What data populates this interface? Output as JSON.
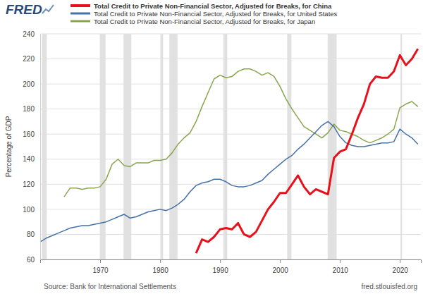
{
  "chart_data": {
    "type": "line",
    "logo": "FRED",
    "y_label": "Percentage of GDP",
    "source": "Source: Bank for International Settlements",
    "site": "fred.stlouisfed.org",
    "x": [
      1960,
      1961,
      1962,
      1963,
      1964,
      1965,
      1966,
      1967,
      1968,
      1969,
      1970,
      1971,
      1972,
      1973,
      1974,
      1975,
      1976,
      1977,
      1978,
      1979,
      1980,
      1981,
      1982,
      1983,
      1984,
      1985,
      1986,
      1987,
      1988,
      1989,
      1990,
      1991,
      1992,
      1993,
      1994,
      1995,
      1996,
      1997,
      1998,
      1999,
      2000,
      2001,
      2002,
      2003,
      2004,
      2005,
      2006,
      2007,
      2008,
      2009,
      2010,
      2011,
      2012,
      2013,
      2014,
      2015,
      2016,
      2017,
      2018,
      2019,
      2020,
      2021,
      2022,
      2023
    ],
    "series": [
      {
        "name": "Total Credit to Private Non-Financial Sector, Adjusted for Breaks, for China",
        "color": "#e8101a",
        "values": [
          null,
          null,
          null,
          null,
          null,
          null,
          null,
          null,
          null,
          null,
          null,
          null,
          null,
          null,
          null,
          null,
          null,
          null,
          null,
          null,
          null,
          null,
          null,
          null,
          null,
          null,
          65,
          76,
          74,
          78,
          84,
          85,
          84,
          89,
          80,
          78,
          82,
          91,
          100,
          106,
          113,
          113,
          120,
          127,
          118,
          112,
          116,
          114,
          112,
          141,
          146,
          148,
          160,
          173,
          184,
          200,
          206,
          205,
          205,
          210,
          223,
          215,
          220,
          228
        ]
      },
      {
        "name": "Total Credit to Private Non-Financial Sector, Adjusted for Breaks, for United States",
        "color": "#4572a7",
        "values": [
          74,
          77,
          79,
          81,
          83,
          85,
          86,
          87,
          87,
          88,
          89,
          90,
          92,
          94,
          96,
          93,
          94,
          96,
          98,
          99,
          100,
          99,
          101,
          104,
          108,
          114,
          119,
          121,
          122,
          124,
          124,
          122,
          119,
          118,
          118,
          119,
          121,
          123,
          128,
          132,
          136,
          140,
          143,
          148,
          152,
          157,
          162,
          167,
          170,
          166,
          158,
          153,
          151,
          150,
          150,
          151,
          152,
          153,
          153,
          154,
          164,
          160,
          157,
          152
        ]
      },
      {
        "name": "Total Credit to Private Non-Financial Sector, Adjusted for Breaks, for Japan",
        "color": "#89a54e",
        "values": [
          null,
          null,
          null,
          null,
          110,
          117,
          117,
          116,
          117,
          117,
          118,
          124,
          136,
          140,
          135,
          134,
          137,
          137,
          137,
          139,
          139,
          140,
          145,
          152,
          157,
          161,
          170,
          182,
          193,
          204,
          207,
          205,
          206,
          210,
          212,
          212,
          210,
          207,
          209,
          206,
          198,
          188,
          180,
          173,
          166,
          163,
          160,
          157,
          161,
          168,
          163,
          162,
          160,
          158,
          155,
          153,
          155,
          157,
          160,
          164,
          181,
          184,
          186,
          182
        ]
      }
    ],
    "recessions": [
      [
        1960.3,
        1961.1
      ],
      [
        1969.95,
        1970.9
      ],
      [
        1973.9,
        1975.2
      ],
      [
        1980.05,
        1980.5
      ],
      [
        1981.55,
        1982.9
      ],
      [
        1990.55,
        1991.2
      ],
      [
        2001.2,
        2001.9
      ],
      [
        2007.95,
        2009.45
      ],
      [
        2020.1,
        2020.35
      ]
    ],
    "xlim": [
      1960,
      2023.5
    ],
    "xticks": [
      1970,
      1980,
      1990,
      2000,
      2010,
      2020
    ],
    "ylim": [
      60,
      240
    ],
    "yticks": [
      60,
      80,
      100,
      120,
      140,
      160,
      180,
      200,
      220,
      240
    ],
    "grid": true,
    "legend": "top"
  }
}
